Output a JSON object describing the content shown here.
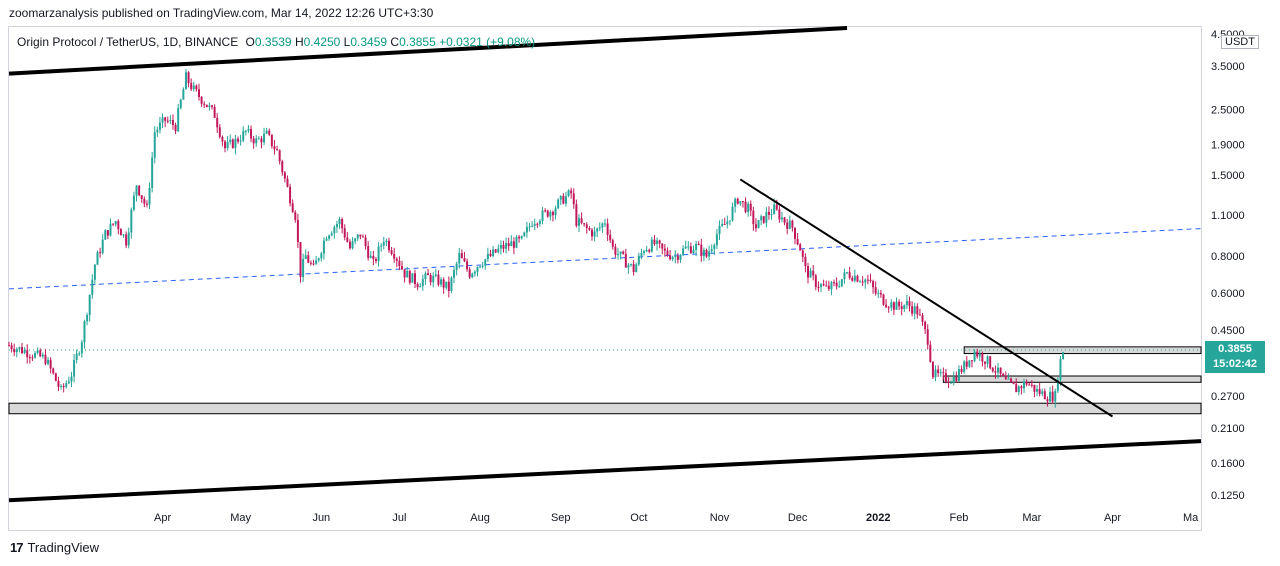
{
  "publisher_line": "zoomarzanalysis published on TradingView.com, Mar 14, 2022 12:26 UTC+3:30",
  "legend": {
    "symbol": "Origin Protocol / TetherUS, 1D, BINANCE",
    "open_label": "O",
    "open": "0.3539",
    "high_label": "H",
    "high": "0.4250",
    "low_label": "L",
    "low": "0.3459",
    "close_label": "C",
    "close": "0.3855",
    "change": "+0.0321 (+9.08%)"
  },
  "currency_badge": "USDT",
  "brand": {
    "logo": "17",
    "name": "TradingView"
  },
  "price_label": {
    "price": "0.3855",
    "countdown": "15:02:42"
  },
  "colors": {
    "up": "#26a69a",
    "down": "#c2185b",
    "dashed_line": "#2962ff",
    "price_label_bg": "#26a69a",
    "zone_fill": "#d8d8d8"
  },
  "chart_data": {
    "type": "candlestick",
    "symbol": "Origin Protocol / TetherUS",
    "interval": "1D",
    "scale": "log",
    "y_ticks": [
      "4.5000",
      "3.5000",
      "2.5000",
      "1.9000",
      "1.5000",
      "1.1000",
      "0.8000",
      "0.6000",
      "0.4500",
      "0.2700",
      "0.2100",
      "0.1600",
      "0.1250"
    ],
    "y_tick_values": [
      4.5,
      3.5,
      2.5,
      1.9,
      1.5,
      1.1,
      0.8,
      0.6,
      0.45,
      0.27,
      0.21,
      0.16,
      0.125
    ],
    "x_ticks": [
      "Apr",
      "May",
      "Jun",
      "Jul",
      "Aug",
      "Sep",
      "Oct",
      "Nov",
      "Dec",
      "2022",
      "Feb",
      "Mar",
      "Apr",
      "Ma"
    ],
    "x_tick_dates": [
      "2021-04-01",
      "2021-05-01",
      "2021-06-01",
      "2021-07-01",
      "2021-08-01",
      "2021-09-01",
      "2021-10-01",
      "2021-11-01",
      "2021-12-01",
      "2022-01-01",
      "2022-02-01",
      "2022-03-01",
      "2022-04-01",
      "2022-05-01"
    ],
    "close_path": [
      {
        "date": "2021-02-01",
        "close": 0.4
      },
      {
        "date": "2021-02-08",
        "close": 0.38
      },
      {
        "date": "2021-02-15",
        "close": 0.36
      },
      {
        "date": "2021-02-21",
        "close": 0.28
      },
      {
        "date": "2021-02-25",
        "close": 0.32
      },
      {
        "date": "2021-03-01",
        "close": 0.42
      },
      {
        "date": "2021-03-06",
        "close": 0.75
      },
      {
        "date": "2021-03-10",
        "close": 0.95
      },
      {
        "date": "2021-03-14",
        "close": 1.05
      },
      {
        "date": "2021-03-18",
        "close": 0.9
      },
      {
        "date": "2021-03-22",
        "close": 1.4
      },
      {
        "date": "2021-03-26",
        "close": 1.15
      },
      {
        "date": "2021-03-29",
        "close": 2.1
      },
      {
        "date": "2021-04-02",
        "close": 2.3
      },
      {
        "date": "2021-04-06",
        "close": 2.2
      },
      {
        "date": "2021-04-10",
        "close": 3.2
      },
      {
        "date": "2021-04-13",
        "close": 2.9
      },
      {
        "date": "2021-04-17",
        "close": 2.65
      },
      {
        "date": "2021-04-21",
        "close": 2.4
      },
      {
        "date": "2021-04-25",
        "close": 1.85
      },
      {
        "date": "2021-04-29",
        "close": 1.95
      },
      {
        "date": "2021-05-03",
        "close": 2.1
      },
      {
        "date": "2021-05-07",
        "close": 1.95
      },
      {
        "date": "2021-05-11",
        "close": 2.05
      },
      {
        "date": "2021-05-15",
        "close": 1.8
      },
      {
        "date": "2021-05-19",
        "close": 1.35
      },
      {
        "date": "2021-05-22",
        "close": 1.1
      },
      {
        "date": "2021-05-24",
        "close": 0.7
      },
      {
        "date": "2021-05-26",
        "close": 0.8
      },
      {
        "date": "2021-05-29",
        "close": 0.72
      },
      {
        "date": "2021-06-03",
        "close": 0.95
      },
      {
        "date": "2021-06-08",
        "close": 1.05
      },
      {
        "date": "2021-06-12",
        "close": 0.85
      },
      {
        "date": "2021-06-16",
        "close": 0.95
      },
      {
        "date": "2021-06-21",
        "close": 0.75
      },
      {
        "date": "2021-06-25",
        "close": 0.92
      },
      {
        "date": "2021-06-29",
        "close": 0.82
      },
      {
        "date": "2021-07-03",
        "close": 0.7
      },
      {
        "date": "2021-07-08",
        "close": 0.65
      },
      {
        "date": "2021-07-12",
        "close": 0.68
      },
      {
        "date": "2021-07-16",
        "close": 0.66
      },
      {
        "date": "2021-07-20",
        "close": 0.62
      },
      {
        "date": "2021-07-24",
        "close": 0.8
      },
      {
        "date": "2021-07-28",
        "close": 0.7
      },
      {
        "date": "2021-08-01",
        "close": 0.76
      },
      {
        "date": "2021-08-05",
        "close": 0.8
      },
      {
        "date": "2021-08-09",
        "close": 0.85
      },
      {
        "date": "2021-08-13",
        "close": 0.88
      },
      {
        "date": "2021-08-17",
        "close": 0.9
      },
      {
        "date": "2021-08-21",
        "close": 1.05
      },
      {
        "date": "2021-08-25",
        "close": 1.1
      },
      {
        "date": "2021-08-29",
        "close": 1.15
      },
      {
        "date": "2021-09-02",
        "close": 1.25
      },
      {
        "date": "2021-09-05",
        "close": 1.3
      },
      {
        "date": "2021-09-07",
        "close": 1.05
      },
      {
        "date": "2021-09-10",
        "close": 1.0
      },
      {
        "date": "2021-09-14",
        "close": 0.95
      },
      {
        "date": "2021-09-18",
        "close": 1.05
      },
      {
        "date": "2021-09-21",
        "close": 0.85
      },
      {
        "date": "2021-09-25",
        "close": 0.78
      },
      {
        "date": "2021-09-29",
        "close": 0.72
      },
      {
        "date": "2021-10-03",
        "close": 0.85
      },
      {
        "date": "2021-10-07",
        "close": 0.88
      },
      {
        "date": "2021-10-11",
        "close": 0.82
      },
      {
        "date": "2021-10-15",
        "close": 0.8
      },
      {
        "date": "2021-10-19",
        "close": 0.85
      },
      {
        "date": "2021-10-23",
        "close": 0.86
      },
      {
        "date": "2021-10-27",
        "close": 0.8
      },
      {
        "date": "2021-10-31",
        "close": 0.95
      },
      {
        "date": "2021-11-04",
        "close": 1.05
      },
      {
        "date": "2021-11-08",
        "close": 1.25
      },
      {
        "date": "2021-11-12",
        "close": 1.15
      },
      {
        "date": "2021-11-15",
        "close": 1.0
      },
      {
        "date": "2021-11-19",
        "close": 1.1
      },
      {
        "date": "2021-11-22",
        "close": 1.15
      },
      {
        "date": "2021-11-26",
        "close": 1.05
      },
      {
        "date": "2021-11-29",
        "close": 1.0
      },
      {
        "date": "2021-12-02",
        "close": 0.85
      },
      {
        "date": "2021-12-04",
        "close": 0.72
      },
      {
        "date": "2021-12-08",
        "close": 0.65
      },
      {
        "date": "2021-12-12",
        "close": 0.62
      },
      {
        "date": "2021-12-16",
        "close": 0.64
      },
      {
        "date": "2021-12-20",
        "close": 0.7
      },
      {
        "date": "2021-12-24",
        "close": 0.68
      },
      {
        "date": "2021-12-28",
        "close": 0.66
      },
      {
        "date": "2021-12-31",
        "close": 0.6
      },
      {
        "date": "2022-01-04",
        "close": 0.56
      },
      {
        "date": "2022-01-08",
        "close": 0.54
      },
      {
        "date": "2022-01-12",
        "close": 0.55
      },
      {
        "date": "2022-01-16",
        "close": 0.52
      },
      {
        "date": "2022-01-20",
        "close": 0.42
      },
      {
        "date": "2022-01-22",
        "close": 0.32
      },
      {
        "date": "2022-01-26",
        "close": 0.31
      },
      {
        "date": "2022-01-30",
        "close": 0.31
      },
      {
        "date": "2022-02-03",
        "close": 0.34
      },
      {
        "date": "2022-02-07",
        "close": 0.38
      },
      {
        "date": "2022-02-11",
        "close": 0.36
      },
      {
        "date": "2022-02-15",
        "close": 0.33
      },
      {
        "date": "2022-02-19",
        "close": 0.3
      },
      {
        "date": "2022-02-23",
        "close": 0.285
      },
      {
        "date": "2022-02-27",
        "close": 0.3
      },
      {
        "date": "2022-03-03",
        "close": 0.28
      },
      {
        "date": "2022-03-07",
        "close": 0.27
      },
      {
        "date": "2022-03-10",
        "close": 0.27
      },
      {
        "date": "2022-03-11",
        "close": 0.32
      },
      {
        "date": "2022-03-12",
        "close": 0.3539
      },
      {
        "date": "2022-03-13",
        "close": 0.3855
      }
    ],
    "annotations": {
      "upper_channel": [
        {
          "date": "2021-02-01",
          "price": 3.3
        },
        {
          "date": "2021-12-20",
          "price": 4.7
        }
      ],
      "lower_channel": [
        {
          "date": "2021-02-01",
          "price": 0.12
        },
        {
          "date": "2022-05-05",
          "price": 0.19
        }
      ],
      "down_trendline": [
        {
          "date": "2021-11-09",
          "price": 1.45
        },
        {
          "date": "2022-04-01",
          "price": 0.23
        }
      ],
      "dashed_trendline": [
        {
          "date": "2021-02-01",
          "price": 0.62
        },
        {
          "date": "2022-05-05",
          "price": 0.99
        }
      ],
      "support_zone": {
        "from": "2021-02-01",
        "to": "2022-05-05",
        "top": 0.255,
        "bottom": 0.235
      },
      "zone_mid": {
        "from": "2022-01-26",
        "to": "2022-05-05",
        "top": 0.315,
        "bottom": 0.3
      },
      "zone_upper": {
        "from": "2022-02-03",
        "to": "2022-05-05",
        "top": 0.395,
        "bottom": 0.375
      }
    }
  }
}
